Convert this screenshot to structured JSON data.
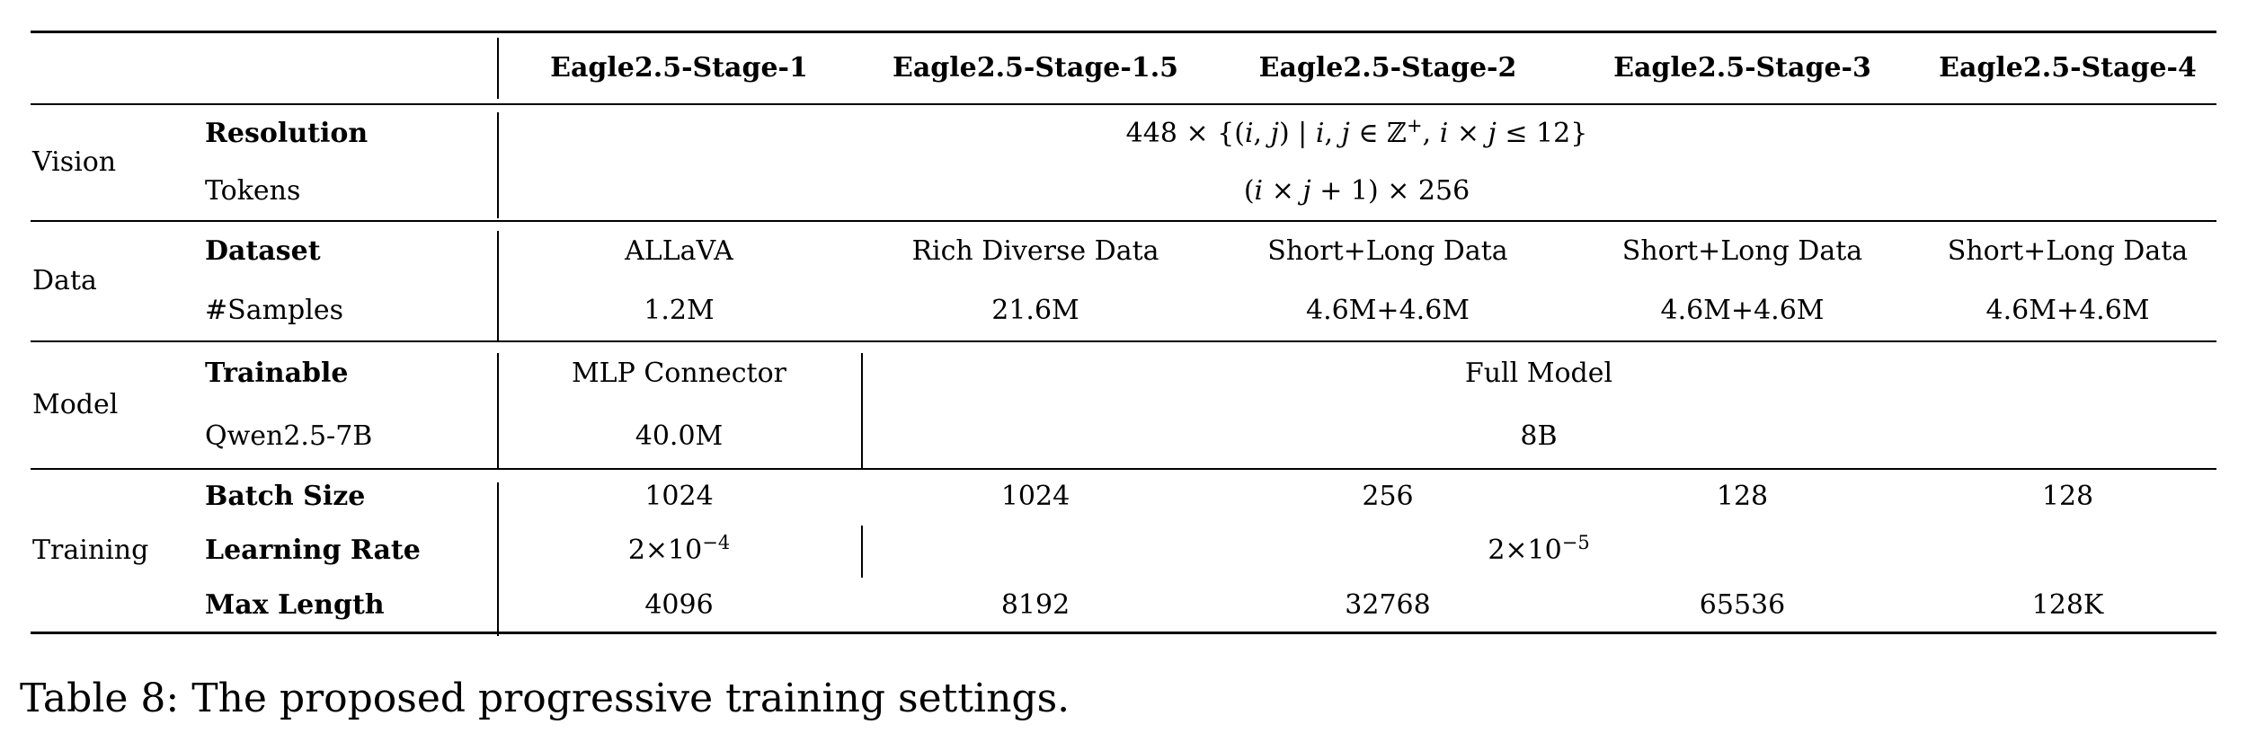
{
  "table": {
    "caption": "Table 8: The proposed progressive training settings.",
    "column_headers": [
      "Eagle2.5-Stage-1",
      "Eagle2.5-Stage-1.5",
      "Eagle2.5-Stage-2",
      "Eagle2.5-Stage-3",
      "Eagle2.5-Stage-4"
    ],
    "vision": {
      "group_label": "Vision",
      "resolution_label": "Resolution",
      "resolution_value": [
        {
          "t": "448 × {("
        },
        {
          "t": "i",
          "it": true
        },
        {
          "t": ", "
        },
        {
          "t": "j",
          "it": true
        },
        {
          "t": ") | "
        },
        {
          "t": "i",
          "it": true
        },
        {
          "t": ", "
        },
        {
          "t": "j",
          "it": true
        },
        {
          "t": " ∈ ℤ"
        },
        {
          "t": "+",
          "sup": true
        },
        {
          "t": ", "
        },
        {
          "t": "i",
          "it": true
        },
        {
          "t": " × "
        },
        {
          "t": "j",
          "it": true
        },
        {
          "t": " ≤ 12}"
        }
      ],
      "tokens_label": "Tokens",
      "tokens_value": [
        {
          "t": "("
        },
        {
          "t": "i",
          "it": true
        },
        {
          "t": " × "
        },
        {
          "t": "j",
          "it": true
        },
        {
          "t": " + 1) × 256"
        }
      ]
    },
    "data": {
      "group_label": "Data",
      "dataset_label": "Dataset",
      "dataset_values": [
        "ALLaVA",
        "Rich Diverse Data",
        "Short+Long Data",
        "Short+Long Data",
        "Short+Long Data"
      ],
      "samples_label": "#Samples",
      "samples_values": [
        "1.2M",
        "21.6M",
        "4.6M+4.6M",
        "4.6M+4.6M",
        "4.6M+4.6M"
      ]
    },
    "model": {
      "group_label": "Model",
      "trainable_label": "Trainable",
      "trainable_stage1": "MLP Connector",
      "trainable_rest": "Full Model",
      "base_label": "Qwen2.5-7B",
      "base_stage1": "40.0M",
      "base_rest": "8B"
    },
    "training": {
      "group_label": "Training",
      "batch_label": "Batch Size",
      "batch_values": [
        "1024",
        "1024",
        "256",
        "128",
        "128"
      ],
      "lr_label": "Learning Rate",
      "lr_stage1": [
        {
          "t": "2×10"
        },
        {
          "t": "−4",
          "sup": true
        }
      ],
      "lr_rest": [
        {
          "t": "2×10"
        },
        {
          "t": "−5",
          "sup": true
        }
      ],
      "maxlen_label": "Max Length",
      "maxlen_values": [
        "4096",
        "8192",
        "32768",
        "65536",
        "128K"
      ]
    }
  }
}
